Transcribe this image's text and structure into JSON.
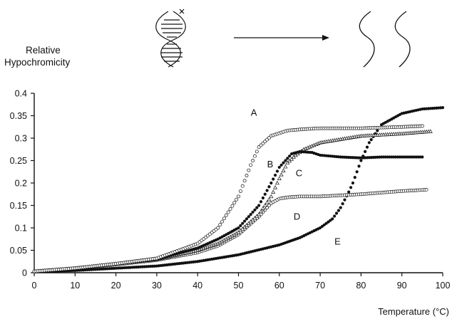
{
  "chart_data": {
    "type": "scatter",
    "title": "",
    "ylabel_lines": [
      "Relative",
      "Hypochromicity"
    ],
    "xlabel": "Temperature (°C)",
    "xlim": [
      0,
      100
    ],
    "ylim": [
      0,
      0.4
    ],
    "x_ticks": [
      0,
      10,
      20,
      30,
      40,
      50,
      60,
      70,
      80,
      90,
      100
    ],
    "y_ticks": [
      0,
      0.05,
      0.1,
      0.15,
      0.2,
      0.25,
      0.3,
      0.35,
      0.4
    ],
    "y_tick_labels": [
      "0",
      "0.05",
      "0.1",
      "0.15",
      "0.2",
      "0.25",
      "0.3",
      "0.35",
      "0.4"
    ],
    "grid": false,
    "series": [
      {
        "name": "A",
        "marker": "open-circle",
        "x": [
          0,
          10,
          20,
          30,
          40,
          45,
          50,
          53,
          55,
          58,
          62,
          66,
          70,
          80,
          90,
          95
        ],
        "y": [
          0.003,
          0.01,
          0.02,
          0.032,
          0.065,
          0.1,
          0.17,
          0.24,
          0.28,
          0.305,
          0.317,
          0.32,
          0.322,
          0.322,
          0.325,
          0.327
        ],
        "label_at": [
          53,
          0.35
        ]
      },
      {
        "name": "B",
        "marker": "filled-circle",
        "x": [
          0,
          10,
          20,
          30,
          40,
          45,
          50,
          55,
          58,
          60,
          62,
          63,
          65,
          68,
          70,
          75,
          80,
          85,
          90,
          95
        ],
        "y": [
          0.003,
          0.01,
          0.02,
          0.03,
          0.055,
          0.075,
          0.1,
          0.15,
          0.2,
          0.235,
          0.255,
          0.265,
          0.27,
          0.268,
          0.262,
          0.258,
          0.256,
          0.258,
          0.258,
          0.258
        ],
        "label_at": [
          57,
          0.235
        ]
      },
      {
        "name": "C",
        "marker": "open-triangle",
        "x": [
          0,
          10,
          20,
          30,
          40,
          45,
          50,
          55,
          58,
          60,
          62,
          64,
          66,
          70,
          80,
          90,
          97
        ],
        "y": [
          0.003,
          0.01,
          0.02,
          0.03,
          0.05,
          0.065,
          0.09,
          0.13,
          0.17,
          0.21,
          0.245,
          0.262,
          0.275,
          0.29,
          0.305,
          0.31,
          0.315
        ],
        "label_at": [
          64,
          0.215
        ]
      },
      {
        "name": "D",
        "marker": "open-circle",
        "x": [
          0,
          10,
          20,
          30,
          40,
          45,
          50,
          55,
          58,
          60,
          62,
          65,
          70,
          80,
          90,
          96
        ],
        "y": [
          0.003,
          0.01,
          0.018,
          0.028,
          0.045,
          0.06,
          0.085,
          0.125,
          0.155,
          0.165,
          0.168,
          0.17,
          0.17,
          0.175,
          0.182,
          0.185
        ],
        "label_at": [
          63.5,
          0.118
        ]
      },
      {
        "name": "E",
        "marker": "filled-circle",
        "x": [
          0,
          10,
          20,
          30,
          40,
          50,
          60,
          65,
          70,
          73,
          75,
          77,
          78,
          80,
          82,
          85,
          90,
          95,
          100
        ],
        "y": [
          0.002,
          0.005,
          0.01,
          0.015,
          0.025,
          0.04,
          0.062,
          0.078,
          0.1,
          0.12,
          0.145,
          0.18,
          0.2,
          0.25,
          0.29,
          0.33,
          0.355,
          0.365,
          0.368
        ],
        "label_at": [
          73.5,
          0.063
        ]
      }
    ]
  }
}
